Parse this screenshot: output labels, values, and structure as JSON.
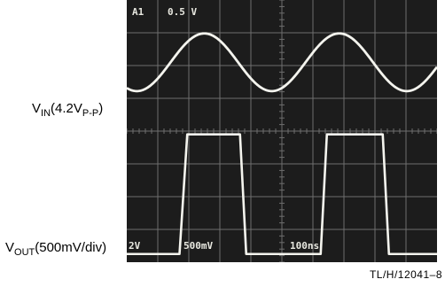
{
  "labels": {
    "vin_main": "V",
    "vin_sub": "IN",
    "vin_paren_open": "(4.2V",
    "vin_pp": "P-P",
    "vin_paren_close": ")",
    "vout_main": "V",
    "vout_sub": "OUT",
    "vout_rest": "(500mV/div)"
  },
  "figure_code": "TL/H/12041–8",
  "overlay": {
    "top_channel": "A1",
    "top_scale": "0.5 V",
    "bottom_ch_scale": "2V",
    "bottom_scale": "500mV",
    "timebase": "100ns"
  },
  "colors": {
    "screen": "#1c1c1c",
    "trace": "#f4f4ee",
    "grid": "#6e6e6e",
    "overlay_text": "#e8e8e0"
  },
  "chart_data": {
    "type": "line",
    "title": "",
    "xlabel": "",
    "ylabel": "",
    "grid": true,
    "divisions": {
      "x": 10,
      "y": 8
    },
    "series": [
      {
        "name": "VIN(4.2VP-P)",
        "kind": "sine",
        "period_div": 4.35,
        "first_peak_div": 2.5,
        "center_div": 6.1,
        "amplitude_div": 0.88
      },
      {
        "name": "VOUT(500mV/div)",
        "kind": "pulse",
        "low_div": 0.25,
        "high_div": 3.9,
        "x_div": [
          0,
          1.7,
          1.95,
          3.65,
          3.85,
          6.25,
          6.45,
          8.25,
          8.45,
          10
        ],
        "y_div": [
          0.25,
          0.25,
          3.9,
          3.9,
          0.25,
          0.25,
          3.9,
          3.9,
          0.25,
          0.25
        ]
      }
    ]
  }
}
